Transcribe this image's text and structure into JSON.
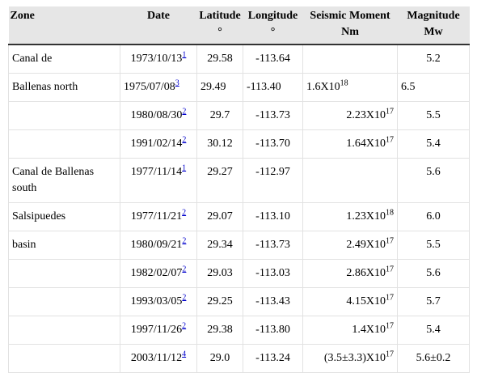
{
  "table": {
    "header": [
      [
        "Zone"
      ],
      [
        "Date"
      ],
      [
        "Latitude",
        "°"
      ],
      [
        "Longitude",
        "°"
      ],
      [
        "Seismic Moment",
        "Nm"
      ],
      [
        "Magnitude",
        "Mw"
      ]
    ],
    "rows": [
      {
        "zone": "Canal de",
        "date": "1973/10/13",
        "note": "1",
        "lat": "29.58",
        "lon": "-113.64",
        "mag": "5.2"
      },
      {
        "zone": "Ballenas north",
        "date": "1975/07/08",
        "note": "3",
        "lat": "29.49",
        "lon": "-113.40",
        "moment": "1.6X10",
        "exp": "18",
        "mag": "6.5"
      },
      {
        "date": "1980/08/30",
        "note": "2",
        "lat": "29.7",
        "lon": "-113.73",
        "moment": "2.23X10",
        "exp": "17",
        "mag": "5.5"
      },
      {
        "date": "1991/02/14",
        "note": "2",
        "lat": "30.12",
        "lon": "-113.70",
        "moment": "1.64X10",
        "exp": "17",
        "mag": "5.4"
      },
      {
        "zone": "Canal de Ballenas south",
        "date": "1977/11/14",
        "note": "1",
        "lat": "29.27",
        "lon": "-112.97",
        "mag": "5.6"
      },
      {
        "zone": "Salsipuedes",
        "date": "1977/11/21",
        "note": "2",
        "lat": "29.07",
        "lon": "-113.10",
        "moment": "1.23X10",
        "exp": "18",
        "mag": "6.0"
      },
      {
        "zone": "basin",
        "date": "1980/09/21",
        "note": "2",
        "lat": "29.34",
        "lon": "-113.73",
        "moment": "2.49X10",
        "exp": "17",
        "mag": "5.5"
      },
      {
        "date": "1982/02/07",
        "note": "2",
        "lat": "29.03",
        "lon": "-113.03",
        "moment": "2.86X10",
        "exp": "17",
        "mag": "5.6"
      },
      {
        "date": "1993/03/05",
        "note": "2",
        "lat": "29.25",
        "lon": "-113.43",
        "moment": "4.15X10",
        "exp": "17",
        "mag": "5.7"
      },
      {
        "date": "1997/11/26",
        "note": "2",
        "lat": "29.38",
        "lon": "-113.80",
        "moment": "1.4X10",
        "exp": "17",
        "mag": "5.4"
      },
      {
        "date": "2003/11/12",
        "note": "4",
        "lat": "29.0",
        "lon": "-113.24",
        "moment": "(3.5±3.3)X10",
        "exp": "17",
        "mag": "5.6±0.2"
      }
    ]
  }
}
